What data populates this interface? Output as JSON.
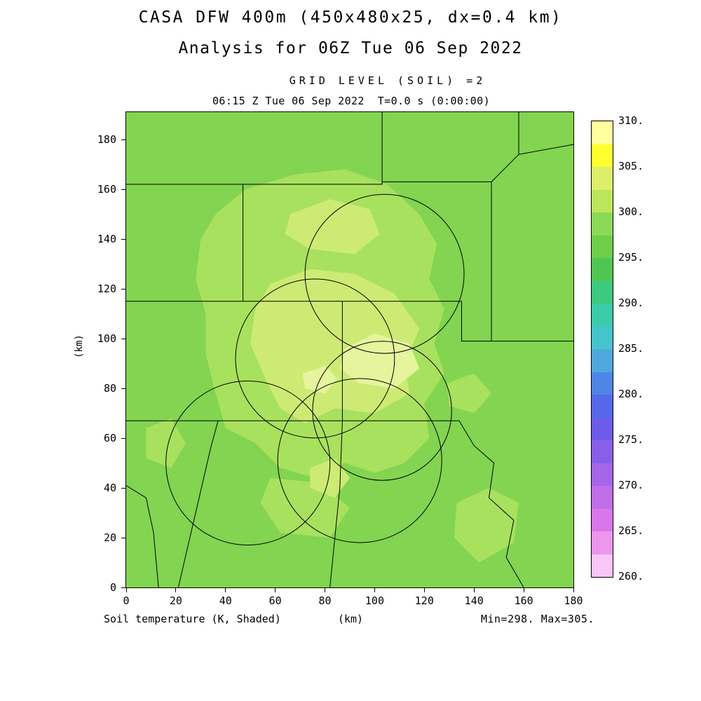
{
  "title": {
    "line1": "CASA DFW 400m (450x480x25, dx=0.4 km)",
    "line2": "Analysis for 06Z Tue 06 Sep 2022"
  },
  "header": {
    "grid_level": "GRID LEVEL (SOIL) =2",
    "time_line": "06:15 Z Tue 06 Sep 2022  T=0.0 s (0:00:00)"
  },
  "footer": {
    "left": "Soil temperature (K, Shaded)",
    "center_unit": "(km)",
    "right": "Min=298. Max=305."
  },
  "axes": {
    "x_label": "(km)",
    "y_label": "(km)",
    "x_ticks": [
      0,
      20,
      40,
      60,
      80,
      100,
      120,
      140,
      160,
      180
    ],
    "y_ticks": [
      0,
      20,
      40,
      60,
      80,
      100,
      120,
      140,
      160,
      180
    ],
    "x_range": [
      0,
      180
    ],
    "y_range": [
      0,
      191
    ]
  },
  "colorbar": {
    "labels": [
      "310.",
      "305.",
      "300.",
      "295.",
      "290.",
      "285.",
      "280.",
      "275.",
      "270.",
      "265.",
      "260."
    ],
    "block_colors_top_to_bottom": [
      "#FFFF9E",
      "#FFFF2E",
      "#DDEF6A",
      "#BCE55C",
      "#8CD957",
      "#6FCE49",
      "#4FC653",
      "#3DC97E",
      "#3CCBA8",
      "#46C4CC",
      "#4FA8DC",
      "#4F86E6",
      "#5569E8",
      "#6E5BE8",
      "#8A5FE8",
      "#A566E8",
      "#BF6FE8",
      "#D877E8",
      "#EC96EE",
      "#F8C6F8"
    ]
  },
  "chart_data": {
    "type": "heatmap",
    "title": "CASA DFW 400m (450x480x25, dx=0.4 km)",
    "subtitle": "Analysis for 06Z Tue 06 Sep 2022",
    "field": "Soil temperature (K, Shaded)",
    "grid_level": "GRID LEVEL (SOIL) =2",
    "valid_time": "06:15 Z Tue 06 Sep 2022",
    "forecast_time": "T=0.0 s (0:00:00)",
    "units": "K",
    "min": 298,
    "max": 305,
    "x_range_km": [
      0,
      180
    ],
    "y_range_km": [
      0,
      191
    ],
    "scale_levels_K": [
      260,
      265,
      270,
      275,
      280,
      285,
      290,
      295,
      300,
      305,
      310
    ],
    "colors": {
      "base": "#82D451",
      "light": "#A8E15E",
      "lighter": "#CDEB74",
      "lightest": "#E6F49E"
    },
    "shaded_regions": [
      {
        "level_K": "300-302",
        "color_key": "light",
        "polygon_km": [
          [
            36,
            150
          ],
          [
            48,
            160
          ],
          [
            68,
            166
          ],
          [
            88,
            168
          ],
          [
            105,
            162
          ],
          [
            118,
            150
          ],
          [
            125,
            138
          ],
          [
            122,
            124
          ],
          [
            128,
            112
          ],
          [
            124,
            98
          ],
          [
            128,
            86
          ],
          [
            120,
            74
          ],
          [
            122,
            60
          ],
          [
            112,
            50
          ],
          [
            100,
            46
          ],
          [
            88,
            50
          ],
          [
            76,
            44
          ],
          [
            62,
            48
          ],
          [
            52,
            58
          ],
          [
            40,
            64
          ],
          [
            36,
            78
          ],
          [
            32,
            94
          ],
          [
            32,
            110
          ],
          [
            28,
            124
          ],
          [
            30,
            140
          ]
        ]
      },
      {
        "level_K": "300-302",
        "color_key": "light",
        "polygon_km": [
          [
            133,
            34
          ],
          [
            146,
            40
          ],
          [
            158,
            34
          ],
          [
            156,
            18
          ],
          [
            142,
            10
          ],
          [
            132,
            20
          ]
        ]
      },
      {
        "level_K": "300-302",
        "color_key": "light",
        "polygon_km": [
          [
            8,
            64
          ],
          [
            18,
            68
          ],
          [
            24,
            58
          ],
          [
            18,
            48
          ],
          [
            8,
            52
          ]
        ]
      },
      {
        "level_K": "300-302",
        "color_key": "light",
        "polygon_km": [
          [
            58,
            44
          ],
          [
            78,
            42
          ],
          [
            90,
            32
          ],
          [
            82,
            20
          ],
          [
            62,
            22
          ],
          [
            54,
            34
          ]
        ]
      },
      {
        "level_K": "300-302",
        "color_key": "light",
        "polygon_km": [
          [
            129,
            82
          ],
          [
            140,
            86
          ],
          [
            147,
            78
          ],
          [
            140,
            70
          ],
          [
            130,
            73
          ]
        ]
      },
      {
        "level_K": "302-304",
        "color_key": "lighter",
        "polygon_km": [
          [
            58,
            122
          ],
          [
            74,
            128
          ],
          [
            92,
            126
          ],
          [
            108,
            118
          ],
          [
            118,
            104
          ],
          [
            112,
            90
          ],
          [
            114,
            78
          ],
          [
            100,
            70
          ],
          [
            84,
            72
          ],
          [
            72,
            66
          ],
          [
            62,
            72
          ],
          [
            56,
            84
          ],
          [
            50,
            98
          ],
          [
            52,
            112
          ]
        ]
      },
      {
        "level_K": "302-304",
        "color_key": "lighter",
        "polygon_km": [
          [
            66,
            150
          ],
          [
            82,
            156
          ],
          [
            98,
            152
          ],
          [
            102,
            142
          ],
          [
            92,
            134
          ],
          [
            74,
            136
          ],
          [
            64,
            142
          ]
        ]
      },
      {
        "level_K": "302-304",
        "color_key": "lighter",
        "polygon_km": [
          [
            74,
            48
          ],
          [
            84,
            52
          ],
          [
            90,
            44
          ],
          [
            84,
            36
          ],
          [
            74,
            40
          ]
        ]
      },
      {
        "level_K": "304-305",
        "color_key": "lightest",
        "polygon_km": [
          [
            88,
            96
          ],
          [
            100,
            102
          ],
          [
            114,
            98
          ],
          [
            118,
            88
          ],
          [
            108,
            80
          ],
          [
            94,
            82
          ],
          [
            86,
            88
          ]
        ]
      },
      {
        "level_K": "304-305",
        "color_key": "lightest",
        "polygon_km": [
          [
            71,
            86
          ],
          [
            80,
            89
          ],
          [
            85,
            84
          ],
          [
            80,
            78
          ],
          [
            72,
            80
          ]
        ]
      }
    ],
    "radar_range_circles_km": [
      {
        "x": 104,
        "y": 126,
        "r": 32
      },
      {
        "x": 76,
        "y": 92,
        "r": 32
      },
      {
        "x": 103,
        "y": 71,
        "r": 28
      },
      {
        "x": 49,
        "y": 50,
        "r": 33
      },
      {
        "x": 94,
        "y": 51,
        "r": 33
      }
    ],
    "county_boundaries_km": [
      [
        [
          103,
          191
        ],
        [
          103,
          162
        ]
      ],
      [
        [
          0,
          162
        ],
        [
          103,
          162
        ],
        [
          103,
          163
        ],
        [
          147,
          163
        ]
      ],
      [
        [
          47,
          162
        ],
        [
          47,
          115
        ]
      ],
      [
        [
          0,
          115
        ],
        [
          135,
          115
        ]
      ],
      [
        [
          87,
          115
        ],
        [
          87,
          67
        ]
      ],
      [
        [
          135,
          115
        ],
        [
          135,
          99
        ],
        [
          180,
          99
        ]
      ],
      [
        [
          147,
          163
        ],
        [
          147,
          99
        ]
      ],
      [
        [
          0,
          67
        ],
        [
          134,
          67
        ]
      ],
      [
        [
          134,
          67
        ],
        [
          140,
          57
        ],
        [
          148,
          50
        ],
        [
          146,
          36
        ],
        [
          156,
          27
        ],
        [
          153,
          12
        ],
        [
          160,
          0
        ]
      ],
      [
        [
          37,
          67
        ],
        [
          34,
          56
        ],
        [
          21,
          0
        ]
      ],
      [
        [
          0,
          41
        ],
        [
          8,
          36
        ],
        [
          11,
          22
        ],
        [
          13,
          0
        ]
      ],
      [
        [
          147,
          163
        ],
        [
          158,
          174
        ],
        [
          158,
          191
        ]
      ],
      [
        [
          158,
          174
        ],
        [
          180,
          178
        ]
      ],
      [
        [
          87,
          67
        ],
        [
          86,
          40
        ],
        [
          82,
          0
        ]
      ]
    ]
  }
}
